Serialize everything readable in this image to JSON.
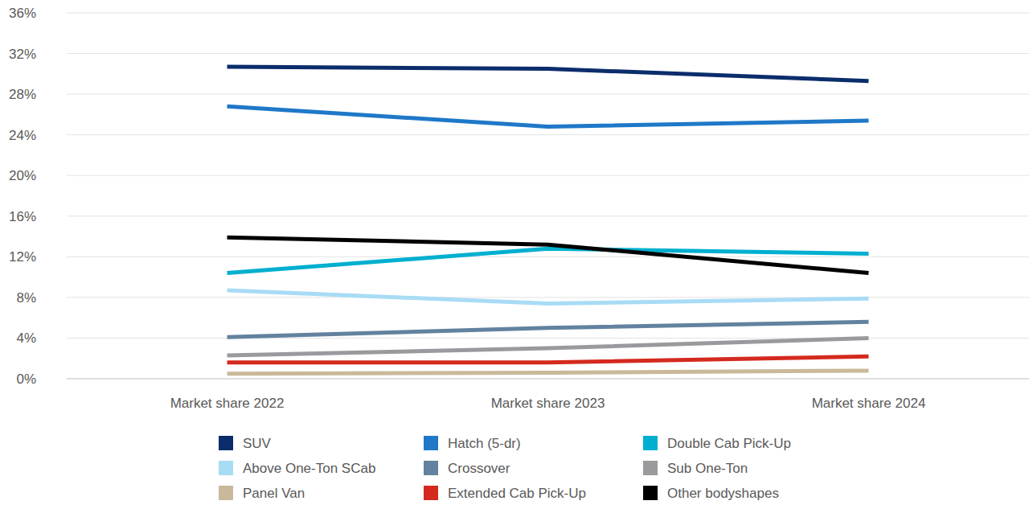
{
  "chart_data": {
    "type": "line",
    "categories": [
      "Market share 2022",
      "Market share 2023",
      "Market share 2024"
    ],
    "series": [
      {
        "name": "SUV",
        "color": "#0b2d6b",
        "values": [
          30.7,
          30.5,
          29.3
        ]
      },
      {
        "name": "Hatch (5-dr)",
        "color": "#1f78c8",
        "values": [
          26.8,
          24.8,
          25.4
        ]
      },
      {
        "name": "Double Cab Pick-Up",
        "color": "#00afcf",
        "values": [
          10.4,
          12.8,
          12.3
        ]
      },
      {
        "name": "Above One-Ton SCab",
        "color": "#a8dcf5",
        "values": [
          8.7,
          7.4,
          7.9
        ]
      },
      {
        "name": "Crossover",
        "color": "#62829f",
        "values": [
          4.1,
          5.0,
          5.6
        ]
      },
      {
        "name": "Sub One-Ton",
        "color": "#9a9a9e",
        "values": [
          2.3,
          3.0,
          4.0
        ]
      },
      {
        "name": "Panel Van",
        "color": "#c9b99a",
        "values": [
          0.5,
          0.6,
          0.8
        ]
      },
      {
        "name": "Extended Cab Pick-Up",
        "color": "#d42a1e",
        "values": [
          1.6,
          1.6,
          2.2
        ]
      },
      {
        "name": "Other bodyshapes",
        "color": "#000000",
        "values": [
          13.9,
          13.2,
          10.4
        ]
      }
    ],
    "ylim": [
      0,
      36
    ],
    "yticks": [
      {
        "value": 0,
        "label": "0%"
      },
      {
        "value": 4,
        "label": "4%"
      },
      {
        "value": 8,
        "label": "8%"
      },
      {
        "value": 12,
        "label": "12%"
      },
      {
        "value": 16,
        "label": "16%"
      },
      {
        "value": 20,
        "label": "20%"
      },
      {
        "value": 24,
        "label": "24%"
      },
      {
        "value": 28,
        "label": "28%"
      },
      {
        "value": 32,
        "label": "32%"
      },
      {
        "value": 36,
        "label": "36%"
      }
    ],
    "grid": true,
    "legend": "bottom"
  }
}
